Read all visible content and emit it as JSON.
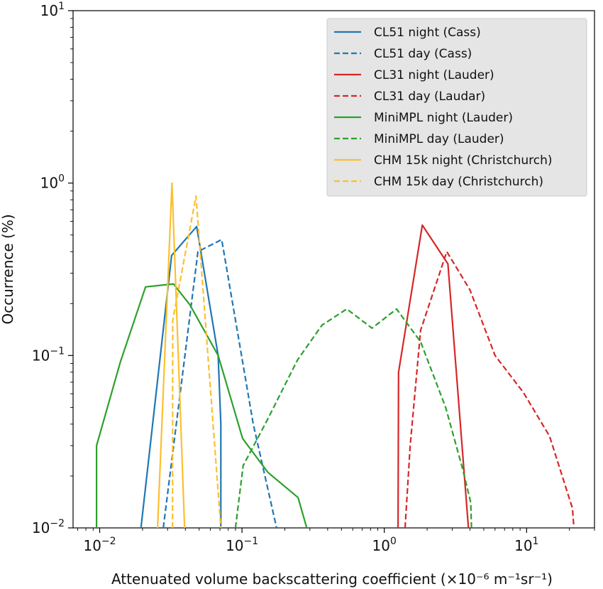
{
  "chart_data": {
    "type": "line",
    "title": "",
    "xlabel": "Attenuated volume backscattering coefficient (×10⁻⁶ m⁻¹sr⁻¹)",
    "ylabel": "Occurrence (%)",
    "xscale": "log",
    "yscale": "log",
    "xlim": [
      0.0065,
      30
    ],
    "ylim": [
      0.01,
      10
    ],
    "x_ticks": [
      {
        "value": 0.01,
        "base": "10",
        "exp": "−2"
      },
      {
        "value": 0.1,
        "base": "10",
        "exp": "−1"
      },
      {
        "value": 1,
        "base": "10",
        "exp": "0"
      },
      {
        "value": 10,
        "base": "10",
        "exp": "1"
      }
    ],
    "y_ticks": [
      {
        "value": 0.01,
        "base": "10",
        "exp": "−2"
      },
      {
        "value": 0.1,
        "base": "10",
        "exp": "−1"
      },
      {
        "value": 1,
        "base": "10",
        "exp": "0"
      },
      {
        "value": 10,
        "base": "10",
        "exp": "1"
      }
    ],
    "grid": false,
    "legend_position": "top-right",
    "series": [
      {
        "name": "CL51 night (Cass)",
        "color": "#1f77b4",
        "dash": "solid",
        "x": [
          0.0195,
          0.032,
          0.048,
          0.068,
          0.071,
          0.071
        ],
        "y": [
          0.01,
          0.38,
          0.56,
          0.1,
          0.04,
          0.01
        ]
      },
      {
        "name": "CL51 day (Cass)",
        "color": "#1f77b4",
        "dash": "dashed",
        "x": [
          0.028,
          0.049,
          0.072,
          0.12,
          0.175
        ],
        "y": [
          0.01,
          0.4,
          0.47,
          0.04,
          0.01
        ]
      },
      {
        "name": "CL31 night (Lauder)",
        "color": "#d62728",
        "dash": "solid",
        "x": [
          1.25,
          1.26,
          1.85,
          2.8,
          3.9
        ],
        "y": [
          0.01,
          0.08,
          0.57,
          0.34,
          0.01
        ]
      },
      {
        "name": "CL31 day (Laudar)",
        "color": "#d62728",
        "dash": "dashed",
        "x": [
          1.4,
          1.52,
          1.8,
          2.75,
          4.0,
          6.0,
          9.5,
          14.5,
          21.0,
          21.5
        ],
        "y": [
          0.01,
          0.03,
          0.14,
          0.4,
          0.24,
          0.1,
          0.061,
          0.034,
          0.013,
          0.01
        ]
      },
      {
        "name": "MiniMPL night (Lauder)",
        "color": "#2ca02c",
        "dash": "solid",
        "x": [
          0.0095,
          0.0095,
          0.014,
          0.021,
          0.033,
          0.043,
          0.068,
          0.101,
          0.152,
          0.248,
          0.285
        ],
        "y": [
          0.01,
          0.03,
          0.092,
          0.25,
          0.26,
          0.197,
          0.1,
          0.033,
          0.021,
          0.015,
          0.01
        ]
      },
      {
        "name": "MiniMPL day (Lauder)",
        "color": "#2ca02c",
        "dash": "dashed",
        "x": [
          0.09,
          0.102,
          0.15,
          0.245,
          0.365,
          0.545,
          0.82,
          1.22,
          1.8,
          2.7,
          3.55,
          4.05,
          4.1
        ],
        "y": [
          0.01,
          0.023,
          0.042,
          0.094,
          0.15,
          0.186,
          0.144,
          0.186,
          0.12,
          0.05,
          0.022,
          0.014,
          0.01
        ]
      },
      {
        "name": "CHM 15k night (Christchurch)",
        "color": "#fcbf2e",
        "dash": "solid",
        "x": [
          0.0255,
          0.0322,
          0.0395
        ],
        "y": [
          0.01,
          1.0,
          0.01
        ]
      },
      {
        "name": "CHM 15k day (Christchurch)",
        "color": "#fcbf2e",
        "dash": "dashed",
        "x": [
          0.0325,
          0.0326,
          0.0475,
          0.071
        ],
        "y": [
          0.01,
          0.16,
          0.84,
          0.01
        ]
      }
    ]
  }
}
